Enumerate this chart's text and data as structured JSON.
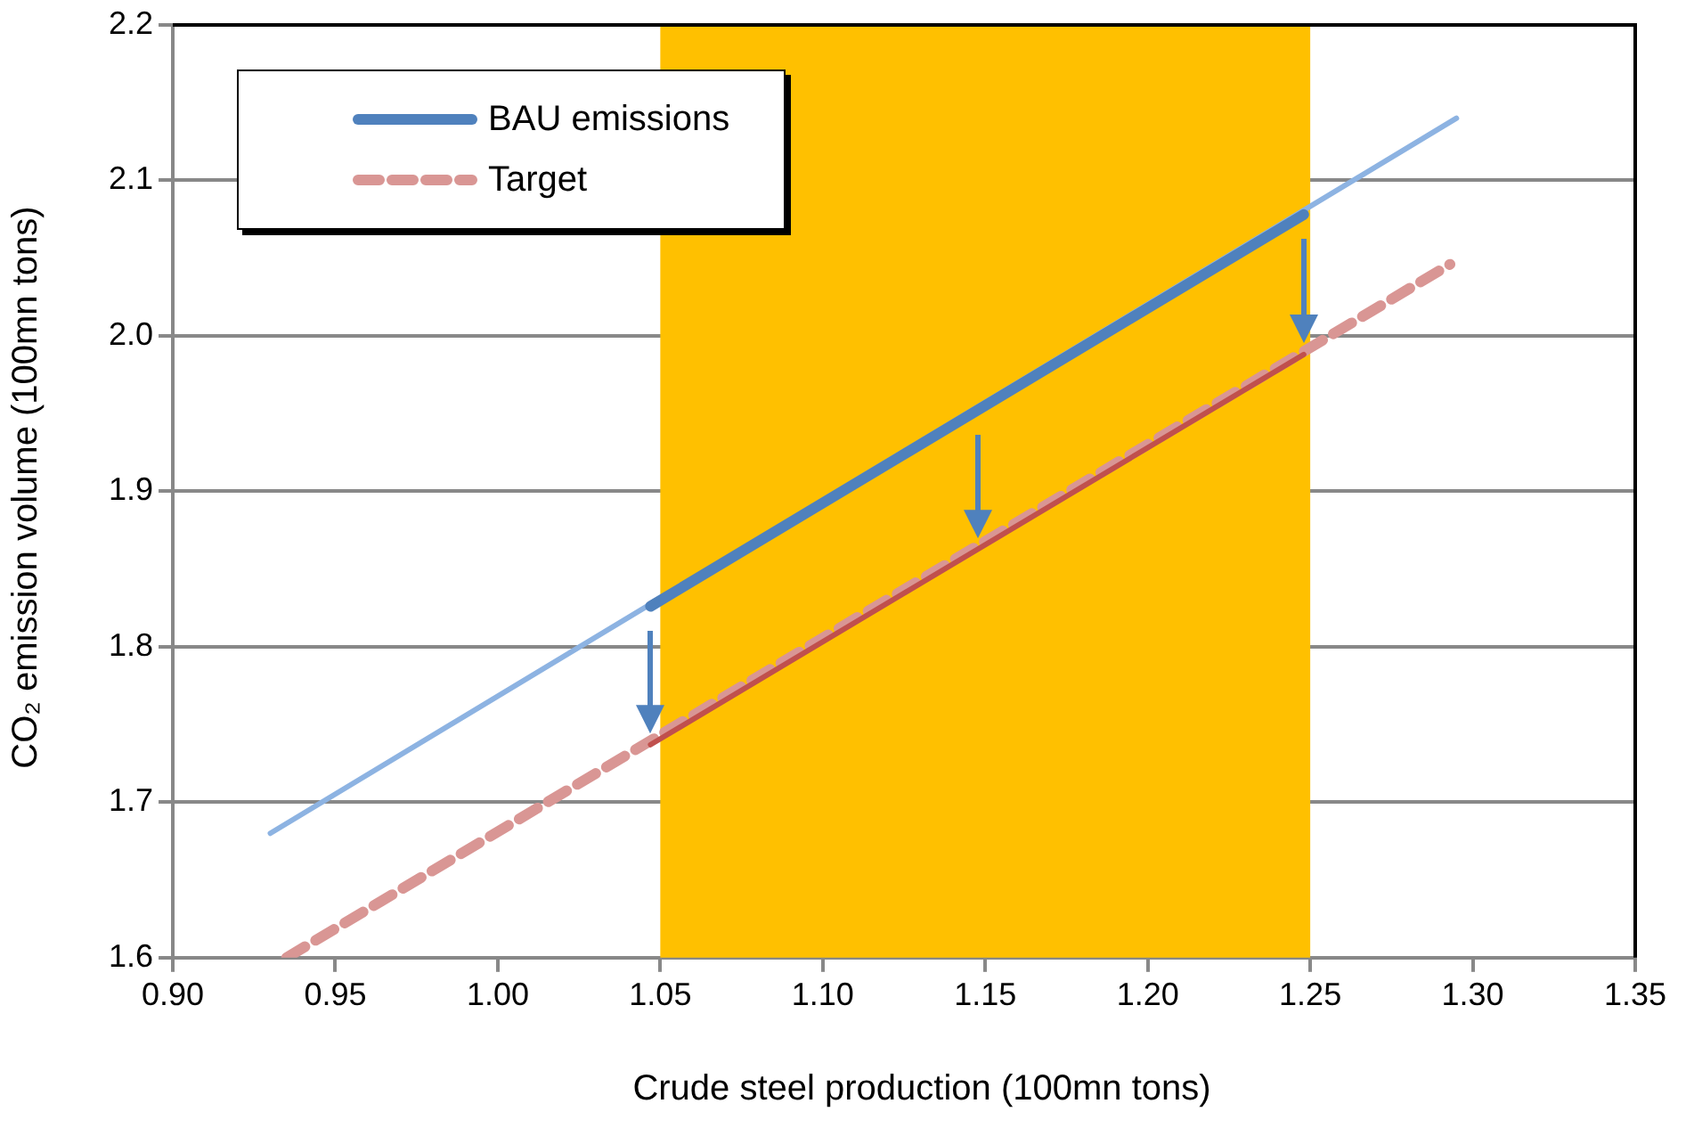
{
  "chart_data": {
    "type": "line",
    "xlabel": "Crude steel production (100mn tons)",
    "ylabel": "CO₂ emission volume (100mn tons)",
    "xlim": [
      0.9,
      1.35
    ],
    "xticks": [
      {
        "value": 0.9,
        "label": "0.90"
      },
      {
        "value": 0.95,
        "label": "0.95"
      },
      {
        "value": 1.0,
        "label": "1.00"
      },
      {
        "value": 1.05,
        "label": "1.05"
      },
      {
        "value": 1.1,
        "label": "1.10"
      },
      {
        "value": 1.15,
        "label": "1.15"
      },
      {
        "value": 1.2,
        "label": "1.20"
      },
      {
        "value": 1.25,
        "label": "1.25"
      },
      {
        "value": 1.3,
        "label": "1.30"
      },
      {
        "value": 1.35,
        "label": "1.35"
      }
    ],
    "ylim": [
      1.6,
      2.2
    ],
    "yticks": [
      {
        "value": 1.6,
        "label": "1.6"
      },
      {
        "value": 1.7,
        "label": "1.7"
      },
      {
        "value": 1.8,
        "label": "1.8"
      },
      {
        "value": 1.9,
        "label": "1.9"
      },
      {
        "value": 2.0,
        "label": "2.0"
      },
      {
        "value": 2.1,
        "label": "2.1"
      },
      {
        "value": 2.2,
        "label": "2.2"
      }
    ],
    "grid": "y",
    "legend": "top left",
    "marker": "none",
    "bands": [
      {
        "axis": "x",
        "from": 1.05,
        "to": 1.25,
        "color": "#ffc000"
      }
    ],
    "series": [
      {
        "type": "line",
        "color": "#8db3e2",
        "x": [
          0.93,
          1.295
        ],
        "values": [
          1.68,
          2.14
        ],
        "line_style": "solid"
      },
      {
        "type": "line",
        "color": "#4f81bd",
        "name": "BAU emissions",
        "x": [
          1.047,
          1.248
        ],
        "values": [
          1.826,
          2.078
        ],
        "line_style": "solid"
      },
      {
        "type": "line",
        "color": "#d99694",
        "name": "Target",
        "x": [
          0.935,
          1.293
        ],
        "values": [
          1.6,
          2.046
        ],
        "line_style": "dashed"
      },
      {
        "type": "line",
        "color": "#c0504d",
        "x": [
          1.047,
          1.248
        ],
        "values": [
          1.737,
          1.988
        ],
        "line_style": "solid"
      }
    ]
  }
}
